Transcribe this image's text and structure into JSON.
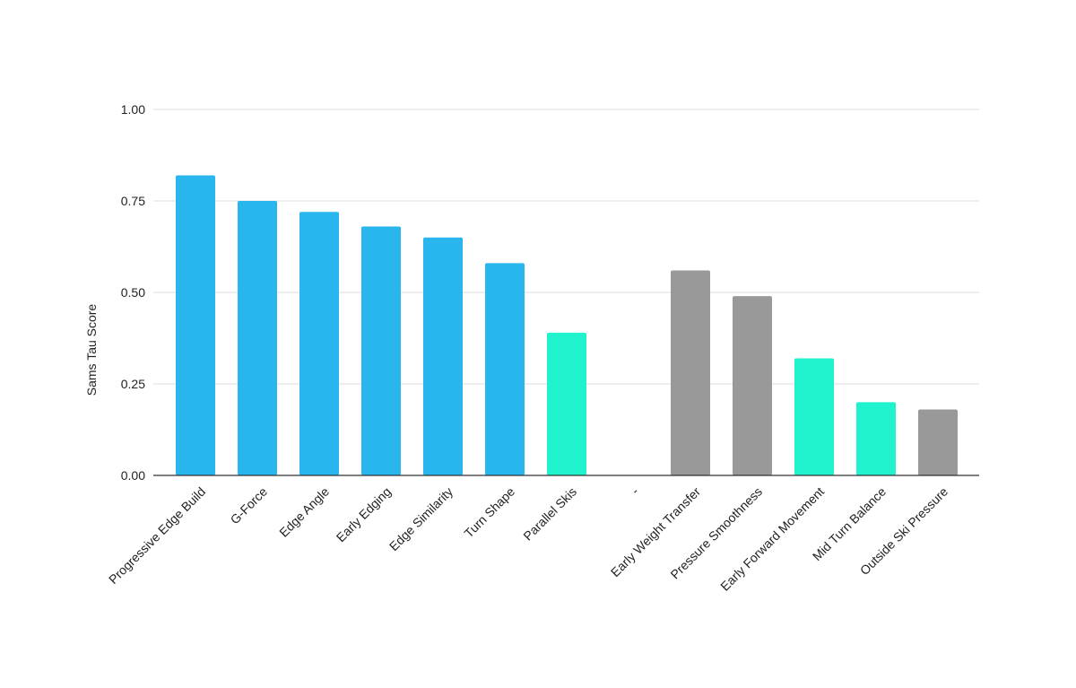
{
  "chart_data": {
    "type": "bar",
    "title": "",
    "xlabel": "",
    "ylabel": "Sams Tau Score",
    "ylim": [
      0,
      1
    ],
    "yticks": [
      "0.00",
      "0.25",
      "0.50",
      "0.75",
      "1.00"
    ],
    "ytick_values": [
      0,
      0.25,
      0.5,
      0.75,
      1.0
    ],
    "grid": true,
    "legend": "none",
    "categories": [
      "Progressive Edge Build",
      "G-Force",
      "Edge Angle",
      "Early Edging",
      "Edge Similarity",
      "Turn Shape",
      "Parallel Skis",
      "-",
      "Early Weight Transfer",
      "Pressure Smoothness",
      "Early Forward Movement",
      "Mid Turn Balance",
      "Outside Ski Pressure"
    ],
    "values": [
      0.82,
      0.75,
      0.72,
      0.68,
      0.65,
      0.58,
      0.39,
      0,
      0.56,
      0.49,
      0.32,
      0.2,
      0.18
    ],
    "bar_colors": [
      "#29b6ef",
      "#29b6ef",
      "#29b6ef",
      "#29b6ef",
      "#29b6ef",
      "#29b6ef",
      "#1ff2cc",
      "#ffffff",
      "#999999",
      "#999999",
      "#1ff2cc",
      "#1ff2cc",
      "#999999"
    ],
    "colors": {
      "grid": "#dddddd",
      "baseline": "#333333"
    }
  }
}
